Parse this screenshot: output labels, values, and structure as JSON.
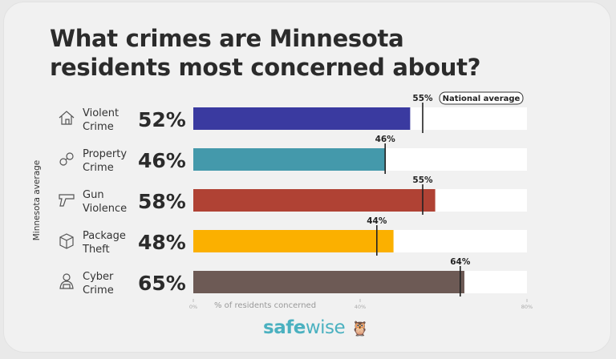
{
  "chart_data": {
    "type": "bar",
    "title": "What crimes are Minnesota residents most concerned about?",
    "title_lines": [
      "What crimes are Minnesota",
      "residents most concerned about?"
    ],
    "ylabel": "Minnesota average",
    "xlabel": "% of residents concerned",
    "xlim": [
      0,
      80
    ],
    "xticks": [
      "0%",
      "40%",
      "80%"
    ],
    "xtick_values": [
      0,
      40,
      80
    ],
    "legend": "National average",
    "categories": [
      "Violent Crime",
      "Property Crime",
      "Gun Violence",
      "Package Theft",
      "Cyber Crime"
    ],
    "category_lines": [
      [
        "Violent",
        "Crime"
      ],
      [
        "Property",
        "Crime"
      ],
      [
        "Gun",
        "Violence"
      ],
      [
        "Package",
        "Theft"
      ],
      [
        "Cyber",
        "Crime"
      ]
    ],
    "icons": [
      "house-icon",
      "handcuffs-icon",
      "gun-icon",
      "package-icon",
      "hacker-icon"
    ],
    "series": [
      {
        "name": "Minnesota average",
        "values": [
          52,
          46,
          58,
          48,
          65
        ],
        "labels": [
          "52%",
          "46%",
          "58%",
          "48%",
          "65%"
        ],
        "colors": [
          "#3a3aa0",
          "#4499ab",
          "#b04234",
          "#fbb000",
          "#6d5a55"
        ]
      },
      {
        "name": "National average",
        "values": [
          55,
          46,
          55,
          44,
          64
        ],
        "labels": [
          "55%",
          "46%",
          "55%",
          "44%",
          "64%"
        ]
      }
    ]
  },
  "brand": {
    "part1": "safe",
    "part2": "wise"
  }
}
